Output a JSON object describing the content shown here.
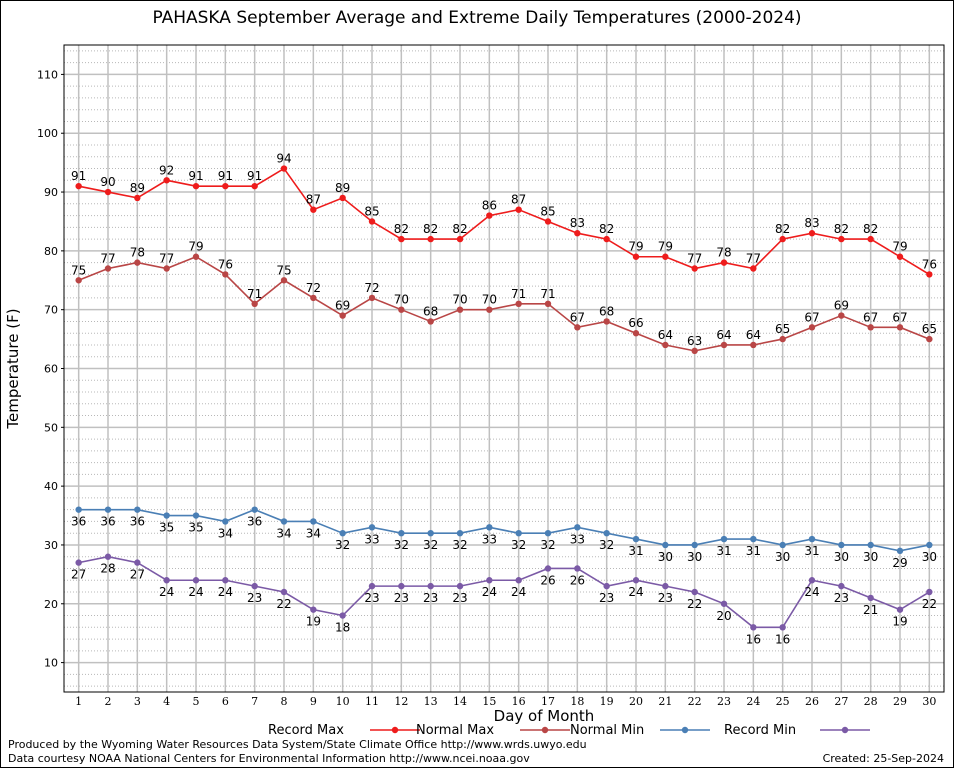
{
  "chart_data": {
    "type": "line",
    "title": "PAHASKA September Average and Extreme Daily Temperatures (2000-2024)",
    "xlabel": "Day of Month",
    "ylabel": "Temperature (F)",
    "x": [
      1,
      2,
      3,
      4,
      5,
      6,
      7,
      8,
      9,
      10,
      11,
      12,
      13,
      14,
      15,
      16,
      17,
      18,
      19,
      20,
      21,
      22,
      23,
      24,
      25,
      26,
      27,
      28,
      29,
      30
    ],
    "xlim": [
      0.5,
      30.5
    ],
    "ylim": [
      5,
      115
    ],
    "y_ticks": [
      10,
      20,
      30,
      40,
      50,
      60,
      70,
      80,
      90,
      100,
      110
    ],
    "grid": true,
    "legend": "bottom",
    "series": [
      {
        "name": "Record Max",
        "color": "#ee1c1c",
        "values": [
          91,
          90,
          89,
          92,
          91,
          91,
          91,
          94,
          87,
          89,
          85,
          82,
          82,
          82,
          86,
          87,
          85,
          83,
          82,
          79,
          79,
          77,
          78,
          77,
          82,
          83,
          82,
          82,
          79,
          76
        ]
      },
      {
        "name": "Normal Max",
        "color": "#b94646",
        "values": [
          75,
          77,
          78,
          77,
          79,
          76,
          71,
          75,
          72,
          69,
          72,
          70,
          68,
          70,
          70,
          71,
          71,
          67,
          68,
          66,
          64,
          63,
          64,
          64,
          65,
          67,
          69,
          67,
          67,
          65
        ]
      },
      {
        "name": "Normal Min",
        "color": "#4a7fb5",
        "values": [
          36,
          36,
          36,
          35,
          35,
          34,
          36,
          34,
          34,
          32,
          33,
          32,
          32,
          32,
          33,
          32,
          32,
          33,
          32,
          31,
          30,
          30,
          31,
          31,
          30,
          31,
          30,
          30,
          29,
          30
        ]
      },
      {
        "name": "Record Min",
        "color": "#7b5aa6",
        "values": [
          27,
          28,
          27,
          24,
          24,
          24,
          23,
          22,
          19,
          18,
          23,
          23,
          23,
          23,
          24,
          24,
          26,
          26,
          23,
          24,
          23,
          22,
          20,
          16,
          16,
          24,
          23,
          21,
          19,
          22
        ]
      }
    ]
  },
  "footer": {
    "line1": "Produced by the Wyoming Water Resources Data System/State Climate Office http://www.wrds.uwyo.edu",
    "line2": "Data courtesy NOAA National Centers for Environmental Information http://www.ncei.noaa.gov",
    "created": "Created:  25-Sep-2024"
  }
}
